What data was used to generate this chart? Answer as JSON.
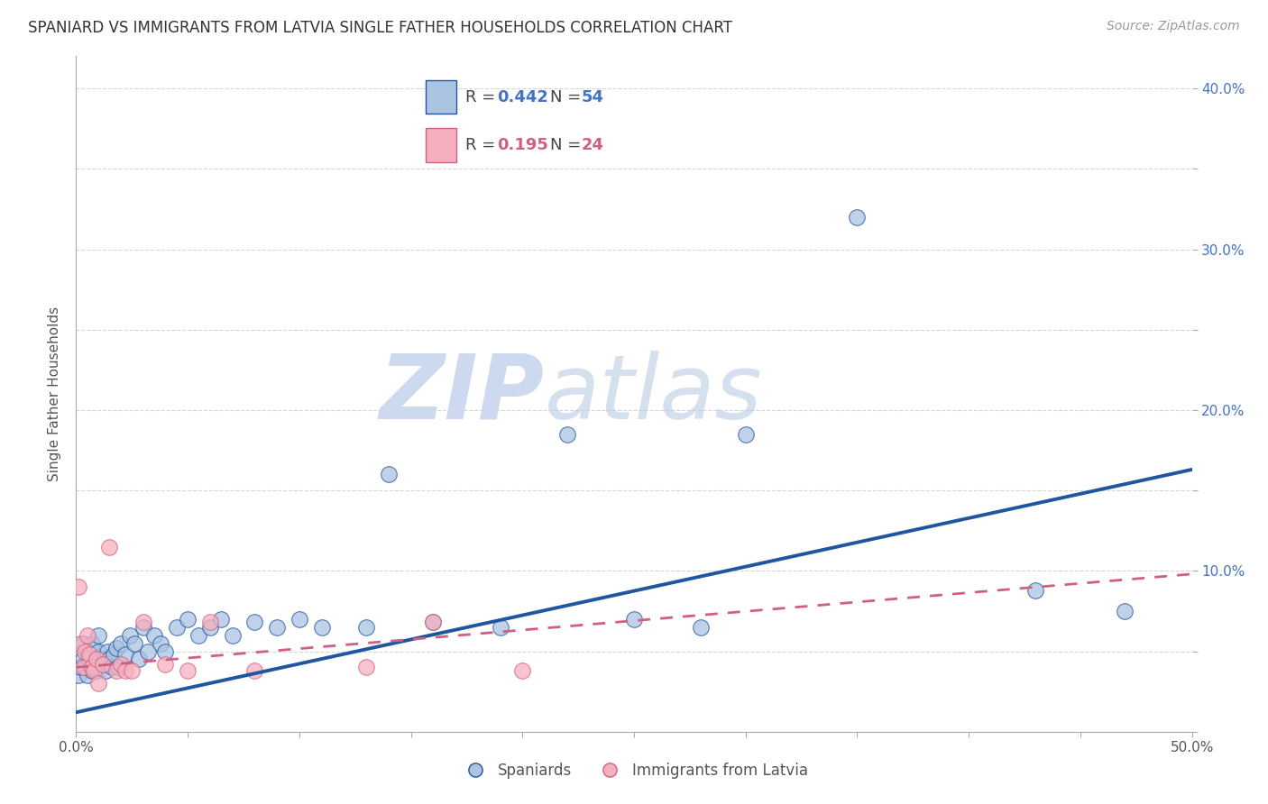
{
  "title": "SPANIARD VS IMMIGRANTS FROM LATVIA SINGLE FATHER HOUSEHOLDS CORRELATION CHART",
  "source": "Source: ZipAtlas.com",
  "ylabel": "Single Father Households",
  "xlim": [
    0.0,
    0.5
  ],
  "ylim": [
    0.0,
    0.42
  ],
  "color_spaniards": "#aac4e2",
  "color_latvia": "#f5b0bf",
  "color_line_spaniards": "#2055a0",
  "color_line_latvia": "#d06080",
  "background_color": "#ffffff",
  "watermark_color": "#ccd9ee",
  "spaniards_x": [
    0.001,
    0.002,
    0.003,
    0.003,
    0.004,
    0.005,
    0.005,
    0.006,
    0.007,
    0.007,
    0.008,
    0.009,
    0.01,
    0.01,
    0.011,
    0.012,
    0.013,
    0.014,
    0.015,
    0.016,
    0.017,
    0.018,
    0.019,
    0.02,
    0.022,
    0.024,
    0.026,
    0.028,
    0.03,
    0.032,
    0.035,
    0.038,
    0.04,
    0.045,
    0.05,
    0.055,
    0.06,
    0.065,
    0.07,
    0.08,
    0.09,
    0.1,
    0.11,
    0.13,
    0.14,
    0.16,
    0.19,
    0.22,
    0.25,
    0.28,
    0.3,
    0.35,
    0.43,
    0.47
  ],
  "spaniards_y": [
    0.035,
    0.04,
    0.045,
    0.055,
    0.04,
    0.035,
    0.05,
    0.045,
    0.038,
    0.055,
    0.042,
    0.038,
    0.05,
    0.06,
    0.045,
    0.042,
    0.038,
    0.05,
    0.045,
    0.04,
    0.048,
    0.052,
    0.04,
    0.055,
    0.048,
    0.06,
    0.055,
    0.045,
    0.065,
    0.05,
    0.06,
    0.055,
    0.05,
    0.065,
    0.07,
    0.06,
    0.065,
    0.07,
    0.06,
    0.068,
    0.065,
    0.07,
    0.065,
    0.065,
    0.16,
    0.068,
    0.065,
    0.185,
    0.07,
    0.065,
    0.185,
    0.32,
    0.088,
    0.075
  ],
  "latvia_x": [
    0.001,
    0.002,
    0.003,
    0.004,
    0.005,
    0.006,
    0.007,
    0.008,
    0.009,
    0.01,
    0.012,
    0.015,
    0.018,
    0.02,
    0.022,
    0.025,
    0.03,
    0.04,
    0.05,
    0.06,
    0.08,
    0.13,
    0.16,
    0.2
  ],
  "latvia_y": [
    0.09,
    0.055,
    0.04,
    0.05,
    0.06,
    0.048,
    0.04,
    0.038,
    0.045,
    0.03,
    0.042,
    0.115,
    0.038,
    0.042,
    0.038,
    0.038,
    0.068,
    0.042,
    0.038,
    0.068,
    0.038,
    0.04,
    0.068,
    0.038
  ],
  "line_blue_x0": 0.0,
  "line_blue_y0": 0.012,
  "line_blue_x1": 0.5,
  "line_blue_y1": 0.163,
  "line_pink_x0": 0.0,
  "line_pink_y0": 0.04,
  "line_pink_x1": 0.5,
  "line_pink_y1": 0.098
}
